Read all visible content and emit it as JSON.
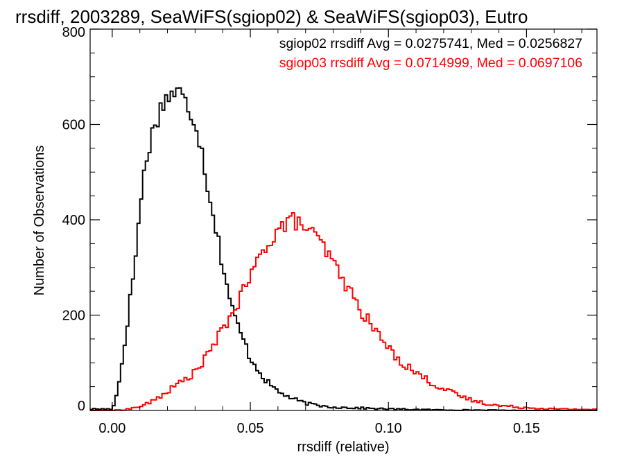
{
  "chart_data": {
    "type": "histogram",
    "title": "rrsdiff, 2003289, SeaWiFS(sgiop02) & SeaWiFS(sgiop03), Eutro",
    "xlabel": "rrsdiff (relative)",
    "ylabel": "Number of Observations",
    "xlim": [
      -0.008,
      0.1755
    ],
    "ylim": [
      0,
      800
    ],
    "xticks": [
      0.0,
      0.05,
      0.1,
      0.15
    ],
    "xtick_labels": [
      "0.00",
      "0.05",
      "0.10",
      "0.15"
    ],
    "yticks": [
      0,
      200,
      400,
      600,
      800
    ],
    "ytick_labels": [
      "0",
      "200",
      "400",
      "600",
      "800"
    ],
    "bin_width": 0.001,
    "legend": [
      {
        "text": "sgiop02 rrsdiff Avg = 0.0275741, Med = 0.0256827",
        "color": "#000000"
      },
      {
        "text": "sgiop03 rrsdiff Avg = 0.0714999, Med = 0.0697106",
        "color": "#ff0000"
      }
    ],
    "series": [
      {
        "color": "#000000",
        "x": [
          0.0,
          0.002,
          0.004,
          0.006,
          0.008,
          0.01,
          0.012,
          0.014,
          0.016,
          0.018,
          0.02,
          0.022,
          0.024,
          0.026,
          0.028,
          0.03,
          0.032,
          0.034,
          0.036,
          0.038,
          0.04,
          0.042,
          0.044,
          0.046,
          0.048,
          0.05,
          0.053,
          0.056,
          0.06,
          0.065,
          0.07,
          0.075,
          0.08,
          0.09,
          0.1,
          0.11,
          0.12,
          0.13,
          0.15,
          0.175
        ],
        "y": [
          3,
          40,
          120,
          210,
          300,
          420,
          520,
          570,
          610,
          640,
          660,
          665,
          670,
          650,
          630,
          610,
          560,
          490,
          430,
          370,
          305,
          250,
          200,
          170,
          140,
          110,
          85,
          60,
          40,
          25,
          15,
          10,
          7,
          5,
          3,
          2,
          1,
          1,
          0,
          0
        ]
      },
      {
        "color": "#ff0000",
        "x": [
          0.0,
          0.005,
          0.01,
          0.015,
          0.02,
          0.025,
          0.03,
          0.035,
          0.04,
          0.045,
          0.05,
          0.055,
          0.06,
          0.065,
          0.07,
          0.075,
          0.08,
          0.085,
          0.09,
          0.095,
          0.1,
          0.105,
          0.11,
          0.115,
          0.12,
          0.125,
          0.13,
          0.135,
          0.14,
          0.15,
          0.16,
          0.175
        ],
        "y": [
          0,
          2,
          8,
          20,
          40,
          60,
          80,
          120,
          170,
          220,
          280,
          340,
          380,
          400,
          385,
          355,
          310,
          260,
          210,
          170,
          130,
          100,
          80,
          60,
          45,
          32,
          22,
          15,
          10,
          6,
          3,
          2
        ]
      }
    ]
  }
}
